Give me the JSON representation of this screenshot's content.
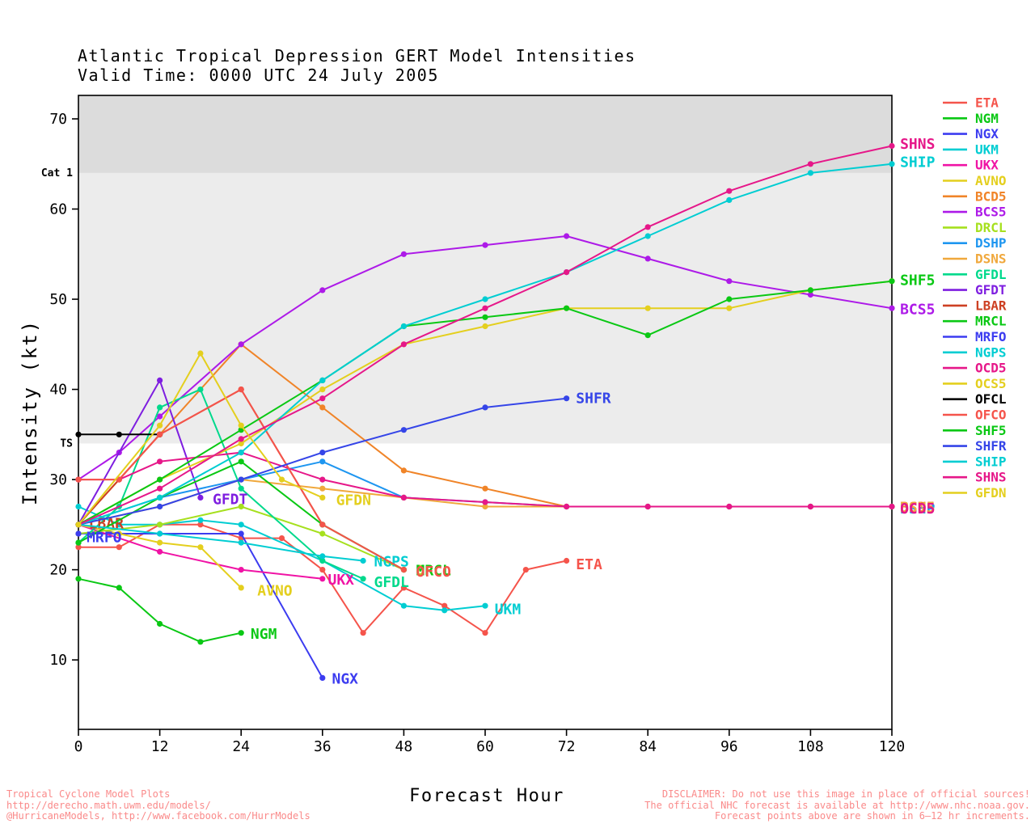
{
  "chart_data": {
    "type": "line",
    "title": "Atlantic Tropical Depression GERT Model Intensities",
    "subtitle": "Valid Time: 0000 UTC 24 July 2005",
    "xlabel": "Forecast Hour",
    "ylabel": "Intensity (kt)",
    "xlim": [
      0,
      120
    ],
    "xticks": [
      0,
      12,
      24,
      36,
      48,
      60,
      72,
      84,
      96,
      108,
      120
    ],
    "ylim": [
      2.3,
      72.6
    ],
    "yticks": [
      10,
      20,
      30,
      40,
      50,
      60,
      70
    ],
    "grid": false,
    "legend_position": "right",
    "bands": [
      {
        "label": "Cat 1",
        "from": 64,
        "to": 72.6,
        "color": "#dcdcdc"
      },
      {
        "label": "TS",
        "from": 34,
        "to": 64,
        "color": "#ececec"
      }
    ],
    "series": [
      {
        "name": "ETA",
        "color": "#f5544b",
        "points": [
          [
            0,
            22.5
          ],
          [
            6,
            22.5
          ],
          [
            12,
            25
          ],
          [
            18,
            25
          ],
          [
            24,
            23.5
          ],
          [
            30,
            23.5
          ],
          [
            36,
            20
          ],
          [
            42,
            13
          ],
          [
            48,
            18
          ],
          [
            54,
            16
          ],
          [
            60,
            13
          ],
          [
            66,
            20
          ],
          [
            72,
            21
          ]
        ],
        "label": {
          "x": 73.4,
          "y": 20.6
        }
      },
      {
        "name": "NGM",
        "color": "#0ac814",
        "points": [
          [
            0,
            19
          ],
          [
            6,
            18
          ],
          [
            12,
            14
          ],
          [
            18,
            12
          ],
          [
            24,
            13
          ]
        ],
        "label": {
          "x": 25.4,
          "y": 12.9
        }
      },
      {
        "name": "NGX",
        "color": "#3c3cf0",
        "points": [
          [
            0,
            24
          ],
          [
            12,
            24
          ],
          [
            24,
            24
          ],
          [
            36,
            8
          ]
        ],
        "label": {
          "x": 37.4,
          "y": 7.9
        }
      },
      {
        "name": "UKM",
        "color": "#00cdd2",
        "points": [
          [
            0,
            27
          ],
          [
            6,
            25
          ],
          [
            12,
            25
          ],
          [
            18,
            25.5
          ],
          [
            24,
            25
          ],
          [
            36,
            21
          ],
          [
            48,
            16
          ],
          [
            54,
            15.5
          ],
          [
            60,
            16
          ]
        ],
        "label": {
          "x": 61.4,
          "y": 15.6
        }
      },
      {
        "name": "UKX",
        "color": "#f013a5",
        "points": [
          [
            0,
            25
          ],
          [
            12,
            22
          ],
          [
            24,
            20
          ],
          [
            36,
            19
          ]
        ],
        "label": {
          "x": 36.8,
          "y": 18.9
        }
      },
      {
        "name": "AVNO",
        "color": "#e4cf1e",
        "points": [
          [
            0,
            25
          ],
          [
            6,
            24
          ],
          [
            12,
            23
          ],
          [
            18,
            22.5
          ],
          [
            24,
            18
          ]
        ],
        "label": {
          "x": 26.4,
          "y": 17.7
        }
      },
      {
        "name": "BCD5",
        "color": "#f08428",
        "points": [
          [
            0,
            25
          ],
          [
            12,
            35
          ],
          [
            24,
            45
          ],
          [
            36,
            38
          ],
          [
            48,
            31
          ],
          [
            60,
            29
          ],
          [
            72,
            27
          ],
          [
            84,
            27
          ],
          [
            96,
            27
          ],
          [
            108,
            27
          ],
          [
            120,
            27
          ]
        ],
        "label": {
          "x": 121.2,
          "y": 26.9
        }
      },
      {
        "name": "BCS5",
        "color": "#ad1ae8",
        "points": [
          [
            0,
            30
          ],
          [
            6,
            33
          ],
          [
            12,
            37
          ],
          [
            24,
            45
          ],
          [
            36,
            51
          ],
          [
            48,
            55
          ],
          [
            60,
            56
          ],
          [
            72,
            57
          ],
          [
            84,
            54.5
          ],
          [
            96,
            52
          ],
          [
            108,
            50.5
          ],
          [
            120,
            49
          ]
        ],
        "label": {
          "x": 121.2,
          "y": 48.9
        }
      },
      {
        "name": "DRCL",
        "color": "#a6e01e",
        "points": [
          [
            0,
            24
          ],
          [
            12,
            25
          ],
          [
            24,
            27
          ],
          [
            36,
            24
          ],
          [
            48,
            20
          ]
        ],
        "label": {
          "x": 49.8,
          "y": 19.9
        }
      },
      {
        "name": "DSHP",
        "color": "#1e96f0",
        "points": [
          [
            0,
            25
          ],
          [
            12,
            28
          ],
          [
            24,
            30
          ],
          [
            36,
            32
          ],
          [
            48,
            28
          ],
          [
            60,
            27.5
          ],
          [
            72,
            27
          ],
          [
            84,
            27
          ],
          [
            96,
            27
          ],
          [
            108,
            27
          ],
          [
            120,
            27
          ]
        ],
        "label": {
          "x": 121.2,
          "y": 26.8
        }
      },
      {
        "name": "DSNS",
        "color": "#f0a83c",
        "points": [
          [
            0,
            25
          ],
          [
            12,
            27
          ],
          [
            24,
            30
          ],
          [
            36,
            29
          ],
          [
            48,
            28
          ],
          [
            60,
            27
          ],
          [
            72,
            27
          ],
          [
            84,
            27
          ],
          [
            96,
            27
          ],
          [
            108,
            27
          ],
          [
            120,
            27
          ]
        ],
        "label": {
          "x": 121.2,
          "y": 26.9
        }
      },
      {
        "name": "GFDL",
        "color": "#00d98c",
        "points": [
          [
            0,
            23
          ],
          [
            6,
            27
          ],
          [
            12,
            38
          ],
          [
            18,
            40
          ],
          [
            24,
            29
          ],
          [
            36,
            21
          ],
          [
            42,
            19
          ]
        ],
        "label": {
          "x": 43.6,
          "y": 18.6
        }
      },
      {
        "name": "GFDT",
        "color": "#7e1ee0",
        "points": [
          [
            0,
            25
          ],
          [
            12,
            41
          ],
          [
            18,
            28
          ]
        ],
        "label": {
          "x": 19.8,
          "y": 27.8
        }
      },
      {
        "name": "LBAR",
        "color": "#cd4023",
        "points": [
          [
            0,
            25
          ],
          [
            12,
            35
          ],
          [
            24,
            40
          ],
          [
            36,
            25
          ],
          [
            48,
            20
          ]
        ],
        "label": {
          "x": 1.5,
          "y": 25.1
        }
      },
      {
        "name": "MRCL",
        "color": "#0ac814",
        "points": [
          [
            0,
            23
          ],
          [
            12,
            28
          ],
          [
            24,
            32
          ],
          [
            36,
            25
          ],
          [
            48,
            20
          ]
        ],
        "label": {
          "x": 49.8,
          "y": 19.9
        }
      },
      {
        "name": "MRFO",
        "color": "#3c3cf0",
        "points": [
          [
            0,
            24
          ]
        ],
        "label": {
          "x": 1.2,
          "y": 23.6
        }
      },
      {
        "name": "NGPS",
        "color": "#00cdd2",
        "points": [
          [
            0,
            25
          ],
          [
            12,
            24
          ],
          [
            24,
            23
          ],
          [
            36,
            21.5
          ],
          [
            42,
            21
          ]
        ],
        "label": {
          "x": 43.6,
          "y": 20.9
        }
      },
      {
        "name": "OCD5",
        "color": "#e61789",
        "points": [
          [
            0,
            30
          ],
          [
            6,
            30
          ],
          [
            12,
            32
          ],
          [
            24,
            33
          ],
          [
            36,
            30
          ],
          [
            48,
            28
          ],
          [
            60,
            27.5
          ],
          [
            72,
            27
          ],
          [
            84,
            27
          ],
          [
            96,
            27
          ],
          [
            108,
            27
          ],
          [
            120,
            27
          ]
        ],
        "label": {
          "x": 121.2,
          "y": 26.8
        }
      },
      {
        "name": "OCS5",
        "color": "#e4cf1e",
        "points": [
          [
            0,
            25
          ],
          [
            12,
            30
          ],
          [
            24,
            34
          ],
          [
            36,
            40
          ],
          [
            48,
            45
          ],
          [
            60,
            47
          ],
          [
            72,
            49
          ],
          [
            84,
            49
          ],
          [
            96,
            49
          ],
          [
            108,
            51
          ],
          [
            120,
            52
          ]
        ]
      },
      {
        "name": "OFCL",
        "color": "#000000",
        "points": [
          [
            0,
            35
          ],
          [
            6,
            35
          ],
          [
            12,
            35
          ]
        ]
      },
      {
        "name": "OFCO",
        "color": "#f5544b",
        "points": [
          [
            0,
            30
          ],
          [
            6,
            30
          ],
          [
            12,
            35
          ],
          [
            24,
            40
          ],
          [
            36,
            25
          ],
          [
            48,
            20
          ]
        ],
        "label": {
          "x": 49.8,
          "y": 19.8
        }
      },
      {
        "name": "SHF5",
        "color": "#0ac814",
        "points": [
          [
            0,
            25
          ],
          [
            12,
            30
          ],
          [
            24,
            35.5
          ],
          [
            36,
            41
          ],
          [
            48,
            47
          ],
          [
            60,
            48
          ],
          [
            72,
            49
          ],
          [
            84,
            46
          ],
          [
            96,
            50
          ],
          [
            108,
            51
          ],
          [
            120,
            52
          ]
        ],
        "label": {
          "x": 121.2,
          "y": 52.1
        }
      },
      {
        "name": "SHFR",
        "color": "#3545e8",
        "points": [
          [
            0,
            25
          ],
          [
            12,
            27
          ],
          [
            24,
            30
          ],
          [
            36,
            33
          ],
          [
            48,
            35.5
          ],
          [
            60,
            38
          ],
          [
            72,
            39
          ]
        ],
        "label": {
          "x": 73.4,
          "y": 39
        }
      },
      {
        "name": "SHIP",
        "color": "#00cdd2",
        "points": [
          [
            0,
            25
          ],
          [
            12,
            28
          ],
          [
            24,
            33
          ],
          [
            36,
            41
          ],
          [
            48,
            47
          ],
          [
            60,
            50
          ],
          [
            72,
            53
          ],
          [
            84,
            57
          ],
          [
            96,
            61
          ],
          [
            108,
            64
          ],
          [
            120,
            65
          ]
        ],
        "label": {
          "x": 121.2,
          "y": 65.2
        }
      },
      {
        "name": "SHNS",
        "color": "#e61789",
        "points": [
          [
            0,
            25
          ],
          [
            12,
            29
          ],
          [
            24,
            34.5
          ],
          [
            36,
            39
          ],
          [
            48,
            45
          ],
          [
            60,
            49
          ],
          [
            72,
            53
          ],
          [
            84,
            58
          ],
          [
            96,
            62
          ],
          [
            108,
            65
          ],
          [
            120,
            67
          ]
        ],
        "label": {
          "x": 121.2,
          "y": 67.2
        }
      },
      {
        "name": "GFDN",
        "color": "#e4cf1e",
        "points": [
          [
            0,
            25
          ],
          [
            12,
            36
          ],
          [
            18,
            44
          ],
          [
            24,
            36
          ],
          [
            30,
            30
          ],
          [
            36,
            28
          ]
        ],
        "label": {
          "x": 38.0,
          "y": 27.7
        }
      }
    ]
  },
  "legend": {
    "items": [
      "ETA",
      "NGM",
      "NGX",
      "UKM",
      "UKX",
      "AVNO",
      "BCD5",
      "BCS5",
      "DRCL",
      "DSHP",
      "DSNS",
      "GFDL",
      "GFDT",
      "LBAR",
      "MRCL",
      "MRFO",
      "NGPS",
      "OCD5",
      "OCS5",
      "OFCL",
      "OFCO",
      "SHF5",
      "SHFR",
      "SHIP",
      "SHNS",
      "GFDN"
    ]
  },
  "footer": {
    "left_lines": [
      "Tropical Cyclone Model Plots",
      "http://derecho.math.uwm.edu/models/",
      "@HurricaneModels, http://www.facebook.com/HurrModels"
    ],
    "right_lines": [
      "DISCLAIMER: Do not use this image in place of official sources!",
      "The official NHC forecast is available at http://www.nhc.noaa.gov.",
      "Forecast points above are shown in 6–12 hr increments."
    ]
  },
  "colors": {
    "band_cat1": "#dcdcdc",
    "band_ts": "#ececec",
    "footer_text": "#fa8a8a",
    "axis": "#000000"
  }
}
